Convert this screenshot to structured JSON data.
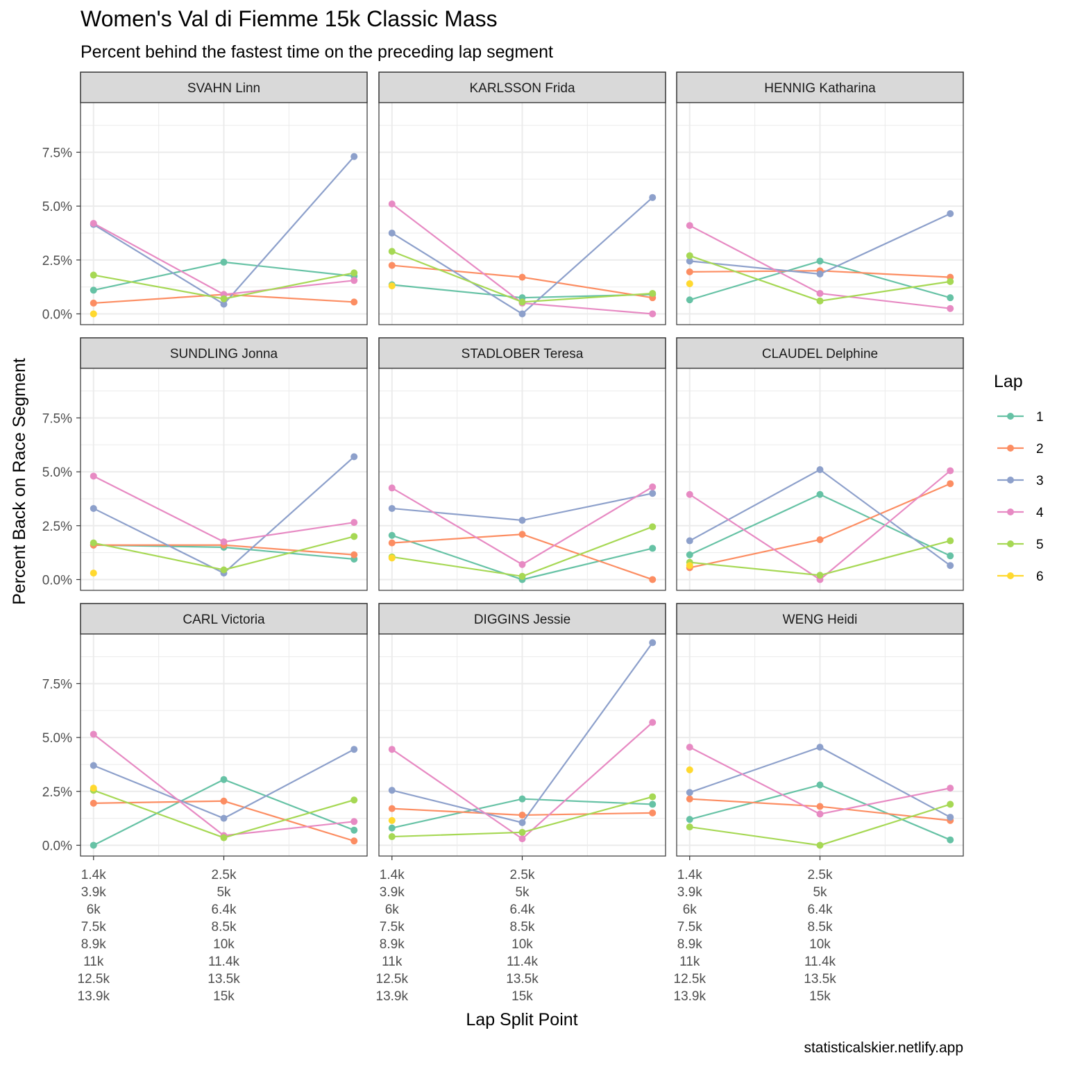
{
  "chart_data": {
    "type": "line",
    "title": "Women's Val di Fiemme 15k Classic Mass",
    "subtitle": "Percent behind the fastest time on the preceding lap segment",
    "xlabel": "Lap Split Point",
    "ylabel": "Percent Back on Race Segment",
    "caption": "statisticalskier.netlify.app",
    "ylim": [
      -0.5,
      9.8
    ],
    "y_ticks": [
      0,
      2.5,
      5.0,
      7.5
    ],
    "y_tick_labels": [
      "0.0%",
      "2.5%",
      "5.0%",
      "7.5%"
    ],
    "x_ticks": [
      1,
      2
    ],
    "x_tick_labels": [
      [
        "1.4k",
        "3.9k",
        "6k",
        "7.5k",
        "8.9k",
        "11k",
        "12.5k",
        "13.9k"
      ],
      [
        "2.5k",
        "5k",
        "6.4k",
        "8.5k",
        "10k",
        "11.4k",
        "13.5k",
        "15k"
      ]
    ],
    "xlim": [
      0.9,
      3.1
    ],
    "grid": true,
    "legend": {
      "title": "Lap",
      "position": "right",
      "entries": [
        "1",
        "2",
        "3",
        "4",
        "5",
        "6"
      ],
      "colors": [
        "#66C2A5",
        "#FC8D62",
        "#8DA0CB",
        "#E78AC3",
        "#A6D854",
        "#FFD92F"
      ]
    },
    "panels": [
      {
        "name": "SVAHN Linn",
        "series": [
          {
            "name": "1",
            "x": [
              1,
              2,
              3
            ],
            "y": [
              1.1,
              2.4,
              1.75
            ]
          },
          {
            "name": "2",
            "x": [
              1,
              2,
              3
            ],
            "y": [
              0.5,
              0.9,
              0.55
            ]
          },
          {
            "name": "3",
            "x": [
              1,
              2,
              3
            ],
            "y": [
              4.15,
              0.45,
              7.3
            ]
          },
          {
            "name": "4",
            "x": [
              1,
              2,
              3
            ],
            "y": [
              4.2,
              0.9,
              1.55
            ]
          },
          {
            "name": "5",
            "x": [
              1,
              2,
              3
            ],
            "y": [
              1.8,
              0.7,
              1.9
            ]
          },
          {
            "name": "6",
            "x": [
              1
            ],
            "y": [
              0.0
            ]
          }
        ]
      },
      {
        "name": "KARLSSON Frida",
        "series": [
          {
            "name": "1",
            "x": [
              1,
              2,
              3
            ],
            "y": [
              1.35,
              0.75,
              0.9
            ]
          },
          {
            "name": "2",
            "x": [
              1,
              2,
              3
            ],
            "y": [
              2.25,
              1.7,
              0.75
            ]
          },
          {
            "name": "3",
            "x": [
              1,
              2,
              3
            ],
            "y": [
              3.75,
              0.0,
              5.4
            ]
          },
          {
            "name": "4",
            "x": [
              1,
              2,
              3
            ],
            "y": [
              5.1,
              0.5,
              0.0
            ]
          },
          {
            "name": "5",
            "x": [
              1,
              2,
              3
            ],
            "y": [
              2.9,
              0.55,
              0.95
            ]
          },
          {
            "name": "6",
            "x": [
              1
            ],
            "y": [
              1.3
            ]
          }
        ]
      },
      {
        "name": "HENNIG Katharina",
        "series": [
          {
            "name": "1",
            "x": [
              1,
              2,
              3
            ],
            "y": [
              0.65,
              2.45,
              0.75
            ]
          },
          {
            "name": "2",
            "x": [
              1,
              2,
              3
            ],
            "y": [
              1.95,
              2.0,
              1.7
            ]
          },
          {
            "name": "3",
            "x": [
              1,
              2,
              3
            ],
            "y": [
              2.45,
              1.85,
              4.65
            ]
          },
          {
            "name": "4",
            "x": [
              1,
              2,
              3
            ],
            "y": [
              4.1,
              0.95,
              0.25
            ]
          },
          {
            "name": "5",
            "x": [
              1,
              2,
              3
            ],
            "y": [
              2.7,
              0.6,
              1.5
            ]
          },
          {
            "name": "6",
            "x": [
              1
            ],
            "y": [
              1.4
            ]
          }
        ]
      },
      {
        "name": "SUNDLING Jonna",
        "series": [
          {
            "name": "1",
            "x": [
              1,
              2,
              3
            ],
            "y": [
              1.6,
              1.5,
              0.95
            ]
          },
          {
            "name": "2",
            "x": [
              1,
              2,
              3
            ],
            "y": [
              1.6,
              1.6,
              1.15
            ]
          },
          {
            "name": "3",
            "x": [
              1,
              2,
              3
            ],
            "y": [
              3.3,
              0.3,
              5.7
            ]
          },
          {
            "name": "4",
            "x": [
              1,
              2,
              3
            ],
            "y": [
              4.8,
              1.75,
              2.65
            ]
          },
          {
            "name": "5",
            "x": [
              1,
              2,
              3
            ],
            "y": [
              1.7,
              0.45,
              2.0
            ]
          },
          {
            "name": "6",
            "x": [
              1
            ],
            "y": [
              0.3
            ]
          }
        ]
      },
      {
        "name": "STADLOBER Teresa",
        "series": [
          {
            "name": "1",
            "x": [
              1,
              2,
              3
            ],
            "y": [
              2.05,
              0.0,
              1.45
            ]
          },
          {
            "name": "2",
            "x": [
              1,
              2,
              3
            ],
            "y": [
              1.7,
              2.1,
              0.0
            ]
          },
          {
            "name": "3",
            "x": [
              1,
              2,
              3
            ],
            "y": [
              3.3,
              2.75,
              4.0
            ]
          },
          {
            "name": "4",
            "x": [
              1,
              2,
              3
            ],
            "y": [
              4.25,
              0.7,
              4.3
            ]
          },
          {
            "name": "5",
            "x": [
              1,
              2,
              3
            ],
            "y": [
              1.05,
              0.15,
              2.45
            ]
          },
          {
            "name": "6",
            "x": [
              1
            ],
            "y": [
              1.0
            ]
          }
        ]
      },
      {
        "name": "CLAUDEL Delphine",
        "series": [
          {
            "name": "1",
            "x": [
              1,
              2,
              3
            ],
            "y": [
              1.15,
              3.95,
              1.1
            ]
          },
          {
            "name": "2",
            "x": [
              1,
              2,
              3
            ],
            "y": [
              0.55,
              1.85,
              4.45
            ]
          },
          {
            "name": "3",
            "x": [
              1,
              2,
              3
            ],
            "y": [
              1.8,
              5.1,
              0.65
            ]
          },
          {
            "name": "4",
            "x": [
              1,
              2,
              3
            ],
            "y": [
              3.95,
              0.0,
              5.05
            ]
          },
          {
            "name": "5",
            "x": [
              1,
              2,
              3
            ],
            "y": [
              0.8,
              0.2,
              1.8
            ]
          },
          {
            "name": "6",
            "x": [
              1
            ],
            "y": [
              0.65
            ]
          }
        ]
      },
      {
        "name": "CARL Victoria",
        "series": [
          {
            "name": "1",
            "x": [
              1,
              2,
              3
            ],
            "y": [
              0.0,
              3.05,
              0.7
            ]
          },
          {
            "name": "2",
            "x": [
              1,
              2,
              3
            ],
            "y": [
              1.95,
              2.05,
              0.2
            ]
          },
          {
            "name": "3",
            "x": [
              1,
              2,
              3
            ],
            "y": [
              3.7,
              1.25,
              4.45
            ]
          },
          {
            "name": "4",
            "x": [
              1,
              2,
              3
            ],
            "y": [
              5.15,
              0.45,
              1.1
            ]
          },
          {
            "name": "5",
            "x": [
              1,
              2,
              3
            ],
            "y": [
              2.55,
              0.35,
              2.1
            ]
          },
          {
            "name": "6",
            "x": [
              1
            ],
            "y": [
              2.65
            ]
          }
        ]
      },
      {
        "name": "DIGGINS Jessie",
        "series": [
          {
            "name": "1",
            "x": [
              1,
              2,
              3
            ],
            "y": [
              0.8,
              2.15,
              1.9
            ]
          },
          {
            "name": "2",
            "x": [
              1,
              2,
              3
            ],
            "y": [
              1.7,
              1.4,
              1.5
            ]
          },
          {
            "name": "3",
            "x": [
              1,
              2,
              3
            ],
            "y": [
              2.55,
              1.05,
              9.4
            ]
          },
          {
            "name": "4",
            "x": [
              1,
              2,
              3
            ],
            "y": [
              4.45,
              0.3,
              5.7
            ]
          },
          {
            "name": "5",
            "x": [
              1,
              2,
              3
            ],
            "y": [
              0.4,
              0.6,
              2.25
            ]
          },
          {
            "name": "6",
            "x": [
              1
            ],
            "y": [
              1.15
            ]
          }
        ]
      },
      {
        "name": "WENG Heidi",
        "series": [
          {
            "name": "1",
            "x": [
              1,
              2,
              3
            ],
            "y": [
              1.2,
              2.8,
              0.25
            ]
          },
          {
            "name": "2",
            "x": [
              1,
              2,
              3
            ],
            "y": [
              2.15,
              1.8,
              1.15
            ]
          },
          {
            "name": "3",
            "x": [
              1,
              2,
              3
            ],
            "y": [
              2.45,
              4.55,
              1.3
            ]
          },
          {
            "name": "4",
            "x": [
              1,
              2,
              3
            ],
            "y": [
              4.55,
              1.45,
              2.65
            ]
          },
          {
            "name": "5",
            "x": [
              1,
              2,
              3
            ],
            "y": [
              0.85,
              0.0,
              1.9
            ]
          },
          {
            "name": "6",
            "x": [
              1
            ],
            "y": [
              3.5
            ]
          }
        ]
      }
    ]
  }
}
